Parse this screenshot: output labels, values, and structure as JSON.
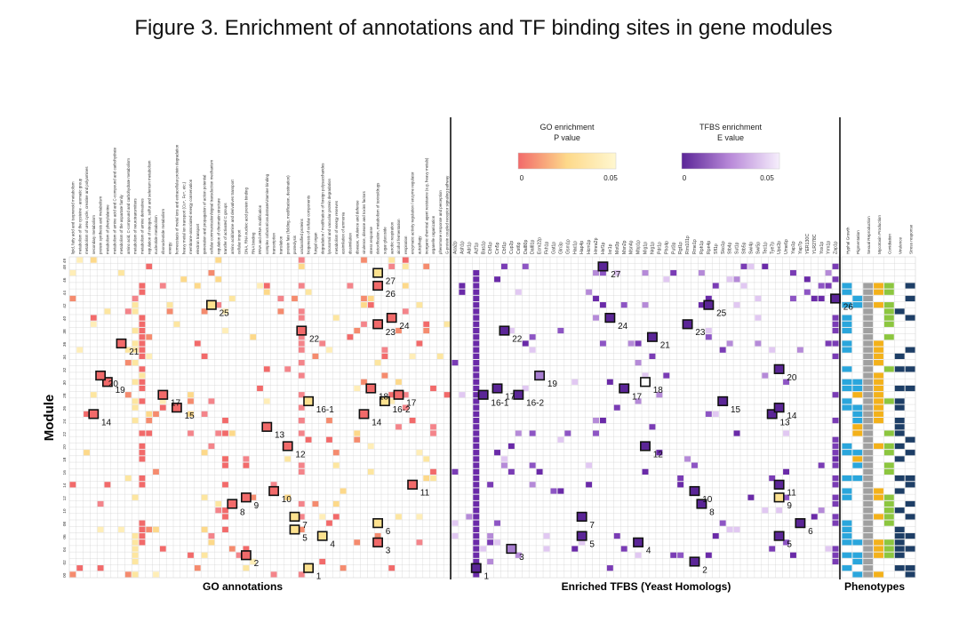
{
  "title": "Figure 3. Enrichment of annotations and TF binding sites in gene modules",
  "y_axis_label": "Module",
  "section_labels": {
    "go": "GO annotations",
    "tfbs": "Enriched TFBS (Yeast Homologs)",
    "phen": "Phenotypes"
  },
  "legend_go": {
    "title1": "GO enrichment",
    "title2": "P value",
    "min": "0",
    "max": "0.05",
    "color_low": "#f26a6a",
    "color_high": "#fff7d0"
  },
  "legend_tfbs": {
    "title1": "TFBS enrichment",
    "title2": "E value",
    "min": "0",
    "max": "0.05",
    "color_low": "#5b2597",
    "color_high": "#f6eefc"
  },
  "colors": {
    "grid": "#d3d3d3",
    "divider": "#111111",
    "phen_blue": "#2aa6dc",
    "phen_gray": "#a0a0a0",
    "phen_orange": "#f3b11a",
    "phen_green": "#8cc63f",
    "phen_navy": "#1d3e66"
  },
  "go_terms": [
    "lipid, fatty acid and isoprenoid metabolism",
    "metabolism of the cysteine - aromatic group",
    "metabolism of urea cycle, creatine and polyamines",
    "secondary metabolism",
    "protein synthesis and metabolism",
    "metabolism of phenylalanine",
    "metabolism of amino acid and C-compound and carbohydrate",
    "metabolism of the aspartate family",
    "amino acid, C-compound and carbohydrate metabolism",
    "metabolism of neurotransmitters",
    "metabolism of amino derivatives",
    "regulation of nitrogen, sulfur and selenium metabolism",
    "nucleotide metabolism",
    "ribonucleotide metabolism",
    "energy",
    "homeostasis of metal ions and extracellular protein degradation",
    "heavy metal ion transport (Cu+, Fe+, etc.)",
    "membrane-associated energy conservation",
    "electron transport",
    "generation and propagation of action potential",
    "cellular communication/signal transduction mechanism",
    "regulation of chromatin structure",
    "transfer of activated C groups",
    "amino acid/amine and derivatives transport",
    "cellular import",
    "DNA, RNA nucleic acid protein binding",
    "RNA binding",
    "tRNA and rRNA modification",
    "complex cofactor/cosubstrate/vitamine binding",
    "transcription",
    "translation",
    "protein fate (folding, modification, destination)",
    "proteolysis",
    "unclassified proteins",
    "biogenesis of cellular components",
    "fungal organ",
    "degradation / modification of foreign polysaccharides",
    "lysosomal and vacuolar protein degradation",
    "metabolism of energy reserves",
    "assimilation of ammonia",
    "dissimilation",
    "disease, virulence and defense",
    "virulence, disease and toxins factors",
    "stress response",
    "detoxification, metabolism of toxins/drugs",
    "sugar glucoside",
    "aerobic respiration",
    "alcohol fermentation",
    "respiration",
    "enzymatic activity regulation / enzyme regulator",
    "autophagy",
    "inorganic chemical agent resistance (e.g. heavy metals)",
    "organelle organization",
    "pheromone response and perception",
    "G-protein coupled receptor signaling pathway"
  ],
  "tf_names": [
    "Aca2p",
    "Ash1p",
    "Adr1p",
    "Azf1p",
    "Bas1p",
    "Cbf1p",
    "Cin5p",
    "Cbf1p",
    "Cup2p",
    "Cst6p",
    "Dal80p",
    "Dal81p",
    "Ecm22p",
    "Fkh1p",
    "Gat1p",
    "Gln3p",
    "Gsm1p",
    "Hac1p",
    "Hap4p",
    "Hcm1p",
    "Hmra2p",
    "Hsf1p",
    "Ixr1p",
    "Mot3p",
    "Msn2p",
    "Msn4p",
    "Mbp1p",
    "Mig1p",
    "Nrg1p",
    "Pdr1p",
    "Pho4p",
    "Put3p",
    "Rgt1p",
    "Rim101p",
    "Rme1p",
    "Rph1p",
    "Rpn4p",
    "Sfl1p",
    "Sko1p",
    "Stb4p",
    "Sut1p",
    "Stb5p",
    "Swi4p",
    "Swi5p",
    "Tec1p",
    "Tye7p",
    "Upc2p",
    "Ume6p",
    "Yap1p",
    "Yap7p",
    "YER130C",
    "YLR278C",
    "Yox1p",
    "Yrm1p",
    "Zap1p"
  ],
  "phenotype_names": [
    "Hyphal Growth",
    "Pigmentation",
    "Sexual Reproduction",
    "Mycotoxin Production",
    "Conidiation",
    "Virulence",
    "Stress response"
  ],
  "module_labels": [
    "00",
    "02",
    "04",
    "06",
    "08",
    "10",
    "12",
    "14",
    "16",
    "18",
    "20",
    "22",
    "24",
    "26",
    "28",
    "30",
    "32",
    "34",
    "36",
    "38",
    "40",
    "42",
    "44",
    "46",
    "48",
    "49"
  ],
  "go_boxes": [
    {
      "label": "1",
      "col": 34,
      "row": 1,
      "tone": "light"
    },
    {
      "label": "2",
      "col": 25,
      "row": 3,
      "tone": "red"
    },
    {
      "label": "3",
      "col": 44,
      "row": 5,
      "tone": "red"
    },
    {
      "label": "4",
      "col": 36,
      "row": 6,
      "tone": "light"
    },
    {
      "label": "5",
      "col": 32,
      "row": 7,
      "tone": "light"
    },
    {
      "label": "6",
      "col": 44,
      "row": 8,
      "tone": "light"
    },
    {
      "label": "7",
      "col": 32,
      "row": 9,
      "tone": "light"
    },
    {
      "label": "8",
      "col": 23,
      "row": 11,
      "tone": "red"
    },
    {
      "label": "9",
      "col": 25,
      "row": 12,
      "tone": "red"
    },
    {
      "label": "10",
      "col": 29,
      "row": 13,
      "tone": "red"
    },
    {
      "label": "11",
      "col": 49,
      "row": 14,
      "tone": "red"
    },
    {
      "label": "12",
      "col": 31,
      "row": 20,
      "tone": "red"
    },
    {
      "label": "13",
      "col": 28,
      "row": 23,
      "tone": "red"
    },
    {
      "label": "14",
      "col": 3,
      "row": 25,
      "tone": "red"
    },
    {
      "label": "14",
      "col": 42,
      "row": 25,
      "tone": "red"
    },
    {
      "label": "15",
      "col": 15,
      "row": 26,
      "tone": "red"
    },
    {
      "label": "16-1",
      "col": 34,
      "row": 27,
      "tone": "light"
    },
    {
      "label": "16-2",
      "col": 45,
      "row": 27,
      "tone": "light"
    },
    {
      "label": "17",
      "col": 13,
      "row": 28,
      "tone": "red"
    },
    {
      "label": "17",
      "col": 47,
      "row": 28,
      "tone": "red"
    },
    {
      "label": "18",
      "col": 43,
      "row": 29,
      "tone": "red"
    },
    {
      "label": "19",
      "col": 5,
      "row": 30,
      "tone": "red"
    },
    {
      "label": "20",
      "col": 4,
      "row": 31,
      "tone": "red"
    },
    {
      "label": "21",
      "col": 7,
      "row": 36,
      "tone": "red"
    },
    {
      "label": "22",
      "col": 33,
      "row": 38,
      "tone": "red"
    },
    {
      "label": "23",
      "col": 44,
      "row": 39,
      "tone": "red"
    },
    {
      "label": "24",
      "col": 46,
      "row": 40,
      "tone": "red"
    },
    {
      "label": "25",
      "col": 20,
      "row": 42,
      "tone": "light"
    },
    {
      "label": "26",
      "col": 44,
      "row": 45,
      "tone": "red"
    },
    {
      "label": "27",
      "col": 44,
      "row": 47,
      "tone": "light"
    }
  ],
  "tf_boxes": [
    {
      "label": "1",
      "col": 3,
      "row": 1,
      "tone": "dark"
    },
    {
      "label": "2",
      "col": 34,
      "row": 2,
      "tone": "dark"
    },
    {
      "label": "3",
      "col": 8,
      "row": 4,
      "tone": "mid"
    },
    {
      "label": "4",
      "col": 26,
      "row": 5,
      "tone": "dark"
    },
    {
      "label": "5",
      "col": 18,
      "row": 6,
      "tone": "dark"
    },
    {
      "label": "5",
      "col": 46,
      "row": 6,
      "tone": "dark"
    },
    {
      "label": "6",
      "col": 49,
      "row": 8,
      "tone": "dark"
    },
    {
      "label": "7",
      "col": 18,
      "row": 9,
      "tone": "dark"
    },
    {
      "label": "8",
      "col": 35,
      "row": 11,
      "tone": "dark"
    },
    {
      "label": "9",
      "col": 46,
      "row": 12,
      "tone": "light"
    },
    {
      "label": "10",
      "col": 34,
      "row": 13,
      "tone": "dark"
    },
    {
      "label": "11",
      "col": 46,
      "row": 14,
      "tone": "dark"
    },
    {
      "label": "12",
      "col": 27,
      "row": 20,
      "tone": "dark"
    },
    {
      "label": "13",
      "col": 45,
      "row": 25,
      "tone": "dark"
    },
    {
      "label": "14",
      "col": 46,
      "row": 26,
      "tone": "dark"
    },
    {
      "label": "15",
      "col": 38,
      "row": 27,
      "tone": "dark"
    },
    {
      "label": "16-1",
      "col": 4,
      "row": 28,
      "tone": "dark"
    },
    {
      "label": "16-2",
      "col": 9,
      "row": 28,
      "tone": "dark"
    },
    {
      "label": "17",
      "col": 6,
      "row": 29,
      "tone": "dark"
    },
    {
      "label": "17",
      "col": 24,
      "row": 29,
      "tone": "dark"
    },
    {
      "label": "18",
      "col": 27,
      "row": 30,
      "tone": "white"
    },
    {
      "label": "19",
      "col": 12,
      "row": 31,
      "tone": "mid"
    },
    {
      "label": "20",
      "col": 46,
      "row": 32,
      "tone": "dark"
    },
    {
      "label": "21",
      "col": 28,
      "row": 37,
      "tone": "dark"
    },
    {
      "label": "22",
      "col": 7,
      "row": 38,
      "tone": "dark"
    },
    {
      "label": "23",
      "col": 33,
      "row": 39,
      "tone": "dark"
    },
    {
      "label": "24",
      "col": 22,
      "row": 40,
      "tone": "dark"
    },
    {
      "label": "25",
      "col": 36,
      "row": 42,
      "tone": "dark"
    },
    {
      "label": "26",
      "col": 54,
      "row": 43,
      "tone": "dark"
    },
    {
      "label": "27",
      "col": 21,
      "row": 48,
      "tone": "dark"
    }
  ]
}
